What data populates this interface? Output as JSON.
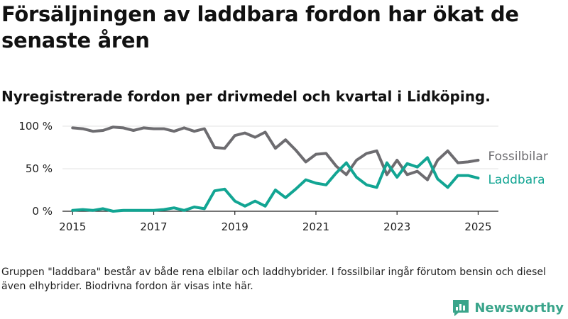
{
  "title": "Försäljningen av laddbara fordon har ökat de senaste åren",
  "subtitle": "Nyregistrerade fordon per drivmedel och kvartal i Lidköping.",
  "note": "Gruppen \"laddbara\" består av både rena elbilar och laddhybrider. I fossilbilar ingår förutom bensin och diesel även elhybrider. Biodrivna fordon är visas inte här.",
  "brand": {
    "name": "Newsworthy",
    "color": "#3aa58b"
  },
  "chart_data": {
    "type": "line",
    "xlim": [
      2014.75,
      2025.5
    ],
    "ylim": [
      0,
      100
    ],
    "x_ticks": [
      {
        "value": 2015,
        "label": "2015"
      },
      {
        "value": 2017,
        "label": "2017"
      },
      {
        "value": 2019,
        "label": "2019"
      },
      {
        "value": 2021,
        "label": "2021"
      },
      {
        "value": 2023,
        "label": "2023"
      },
      {
        "value": 2025,
        "label": "2025"
      }
    ],
    "y_ticks": [
      {
        "value": 0,
        "label": "0 %"
      },
      {
        "value": 50,
        "label": "50 %"
      },
      {
        "value": 100,
        "label": "100 %"
      }
    ],
    "grid": true,
    "x": [
      2015.0,
      2015.25,
      2015.5,
      2015.75,
      2016.0,
      2016.25,
      2016.5,
      2016.75,
      2017.0,
      2017.25,
      2017.5,
      2017.75,
      2018.0,
      2018.25,
      2018.5,
      2018.75,
      2019.0,
      2019.25,
      2019.5,
      2019.75,
      2020.0,
      2020.25,
      2020.5,
      2020.75,
      2021.0,
      2021.25,
      2021.5,
      2021.75,
      2022.0,
      2022.25,
      2022.5,
      2022.75,
      2023.0,
      2023.25,
      2023.5,
      2023.75,
      2024.0,
      2024.25,
      2024.5,
      2024.75,
      2025.0
    ],
    "series": [
      {
        "name": "Fossilbilar",
        "color": "#6d6c70",
        "values": [
          98,
          97,
          94,
          95,
          99,
          98,
          95,
          98,
          97,
          97,
          94,
          98,
          94,
          97,
          75,
          74,
          89,
          92,
          87,
          93,
          74,
          84,
          72,
          58,
          67,
          68,
          53,
          43,
          60,
          68,
          71,
          43,
          60,
          43,
          47,
          37,
          60,
          71,
          57,
          58,
          60
        ]
      },
      {
        "name": "Laddbara",
        "color": "#12a593",
        "values": [
          1,
          2,
          1,
          3,
          0,
          1,
          1,
          1,
          1,
          2,
          4,
          1,
          5,
          3,
          24,
          26,
          12,
          6,
          12,
          6,
          25,
          16,
          26,
          37,
          33,
          31,
          45,
          57,
          40,
          31,
          28,
          57,
          40,
          56,
          52,
          63,
          38,
          28,
          42,
          42,
          39
        ]
      }
    ]
  }
}
